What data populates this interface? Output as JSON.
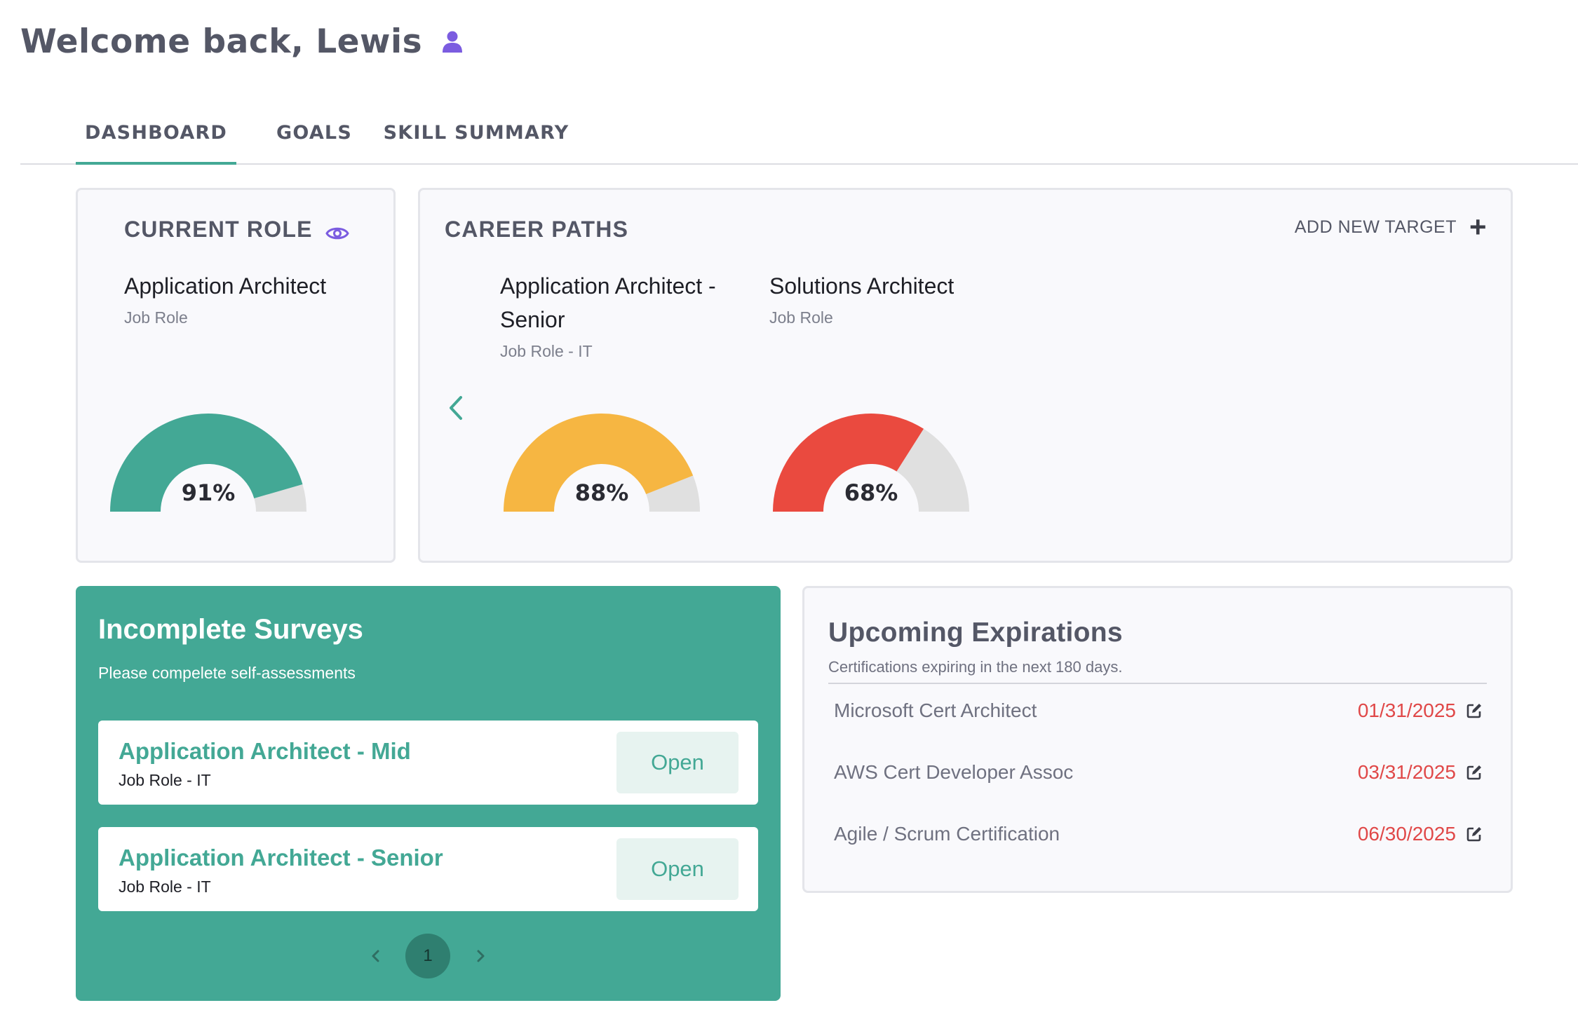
{
  "header": {
    "welcome": "Welcome back, Lewis",
    "user_icon": "user-icon"
  },
  "tabs": [
    {
      "label": "DASHBOARD",
      "active": true
    },
    {
      "label": "GOALS",
      "active": false
    },
    {
      "label": "SKILL SUMMARY",
      "active": false
    }
  ],
  "current_role": {
    "title": "CURRENT ROLE",
    "icon": "eye-icon",
    "role_name": "Application Architect",
    "role_type": "Job Role",
    "match_percent": 91,
    "match_label": "91%",
    "color": "#43a895"
  },
  "career_paths": {
    "title": "CAREER PATHS",
    "add_target_label": "ADD NEW TARGET",
    "paths": [
      {
        "name_line1": "Application Architect -",
        "name_line2": "Senior",
        "type": "Job Role - IT",
        "match_percent": 88,
        "match_label": "88%",
        "color": "#f6b642"
      },
      {
        "name_line1": "Solutions Architect",
        "name_line2": "",
        "type": "Job Role",
        "match_percent": 68,
        "match_label": "68%",
        "color": "#ea4a3f"
      }
    ]
  },
  "surveys": {
    "title": "Incomplete Surveys",
    "subtitle": "Please compelete self-assessments",
    "items": [
      {
        "name": "Application Architect - Mid",
        "type": "Job Role - IT",
        "button": "Open"
      },
      {
        "name": "Application Architect - Senior",
        "type": "Job Role - IT",
        "button": "Open"
      }
    ],
    "current_page": "1"
  },
  "expirations": {
    "title": "Upcoming Expirations",
    "subtitle": "Certifications expiring in the next 180 days.",
    "items": [
      {
        "name": "Microsoft Cert Architect",
        "date": "01/31/2025"
      },
      {
        "name": "AWS Cert Developer Assoc",
        "date": "03/31/2025"
      },
      {
        "name": "Agile / Scrum Certification",
        "date": "06/30/2025"
      }
    ]
  },
  "colors": {
    "accent": "#43a895",
    "gauge_track": "#e0e0e0",
    "date": "#e04848",
    "user_icon": "#7b5ce0"
  }
}
